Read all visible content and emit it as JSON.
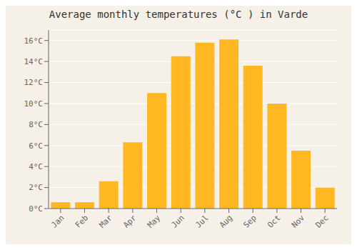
{
  "chart_data": {
    "type": "bar",
    "title": "Average monthly temperatures (°C ) in Varde",
    "categories": [
      "Jan",
      "Feb",
      "Mar",
      "Apr",
      "May",
      "Jun",
      "Jul",
      "Aug",
      "Sep",
      "Oct",
      "Nov",
      "Dec"
    ],
    "values": [
      0.6,
      0.6,
      2.6,
      6.3,
      11.0,
      14.5,
      15.8,
      16.1,
      13.6,
      10.0,
      5.5,
      2.0
    ],
    "color": "#FFB822",
    "ylim": [
      0,
      17
    ],
    "yticks": [
      {
        "value": 0,
        "label": "0°C"
      },
      {
        "value": 2,
        "label": "2°C"
      },
      {
        "value": 4,
        "label": "4°C"
      },
      {
        "value": 6,
        "label": "6°C"
      },
      {
        "value": 8,
        "label": "8°C"
      },
      {
        "value": 10,
        "label": "10°C"
      },
      {
        "value": 12,
        "label": "12°C"
      },
      {
        "value": 14,
        "label": "14°C"
      },
      {
        "value": 16,
        "label": "16°C"
      }
    ],
    "grid": true
  }
}
